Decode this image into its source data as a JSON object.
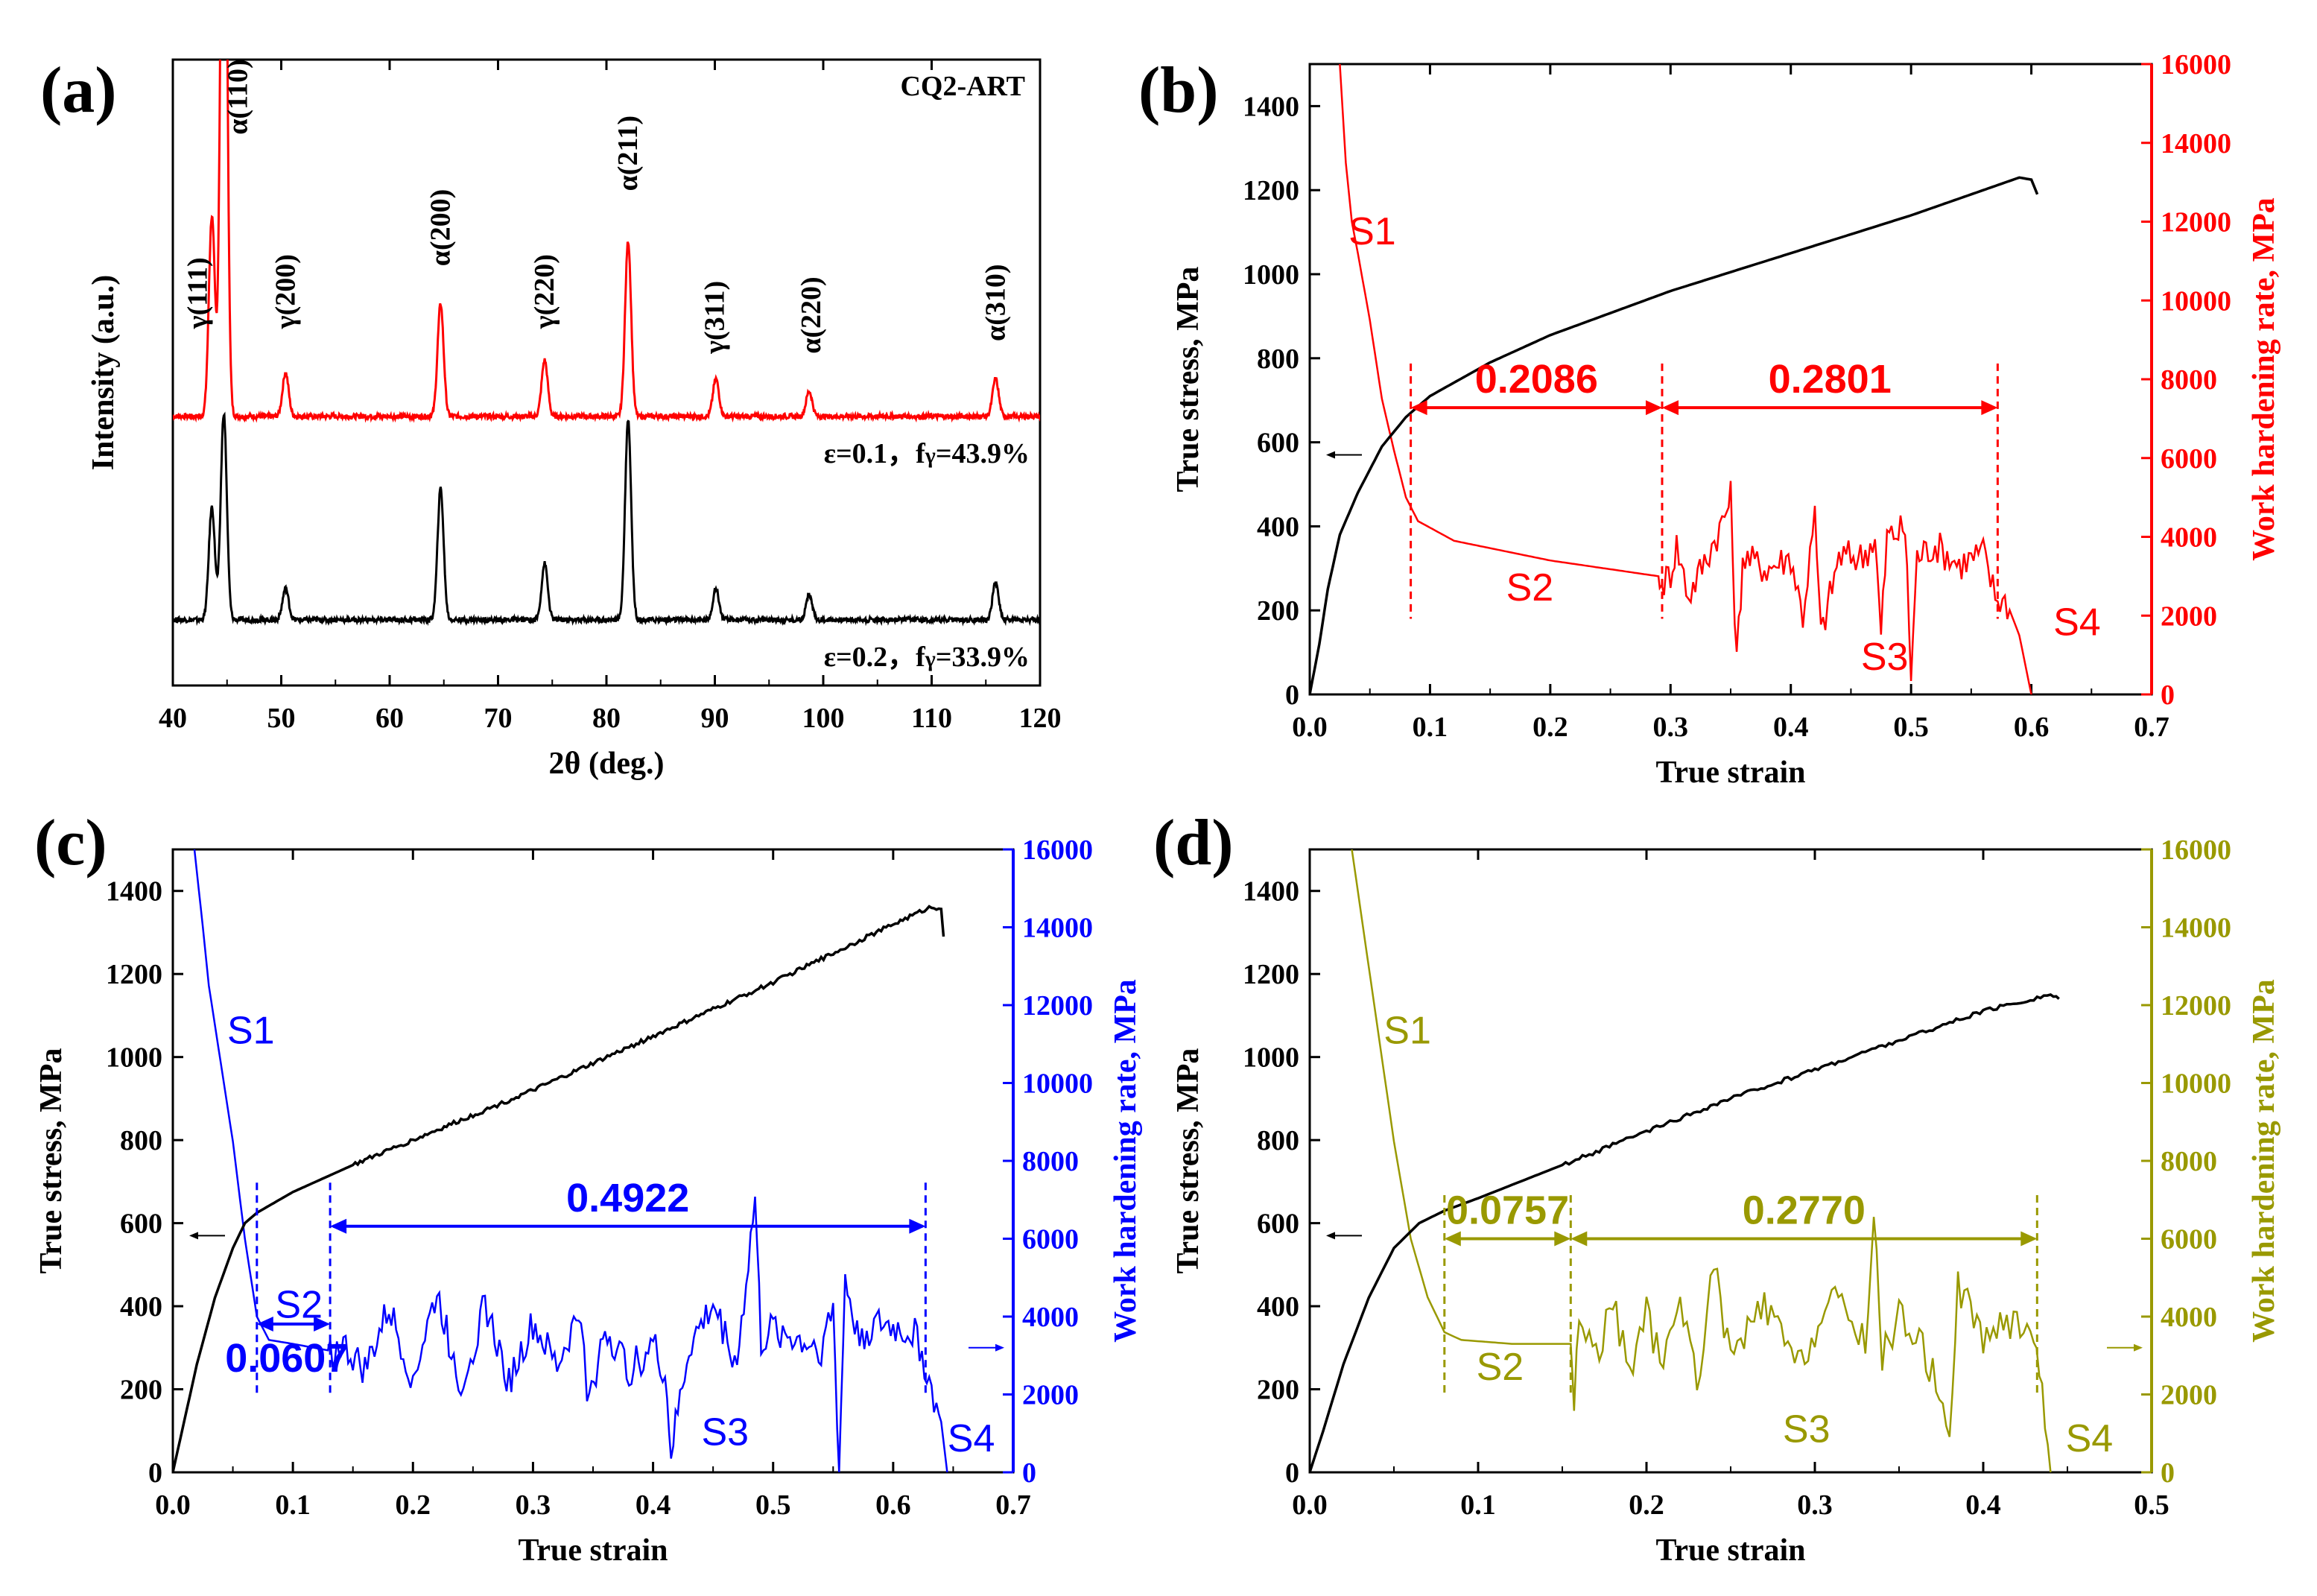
{
  "chart_data": [
    {
      "id": "a",
      "type": "line",
      "panel_label": "(a)",
      "title": "CQ2-ART",
      "xlabel": "2θ (deg.)",
      "ylabel": "Intensity (a.u.)",
      "xlim": [
        40,
        120
      ],
      "xticks": [
        40,
        50,
        60,
        70,
        80,
        90,
        100,
        110,
        120
      ],
      "ylim": [
        0,
        1
      ],
      "series": [
        {
          "name": "ε=0.1",
          "color": "#ff0000",
          "label_parts": [
            "ε=0.1，",
            "f",
            "γ",
            "=43.9%"
          ],
          "baseline": 0.43,
          "peaks": [
            [
              43.6,
              0.32
            ],
            [
              44.7,
              1.2
            ],
            [
              50.4,
              0.07
            ],
            [
              64.7,
              0.18
            ],
            [
              74.3,
              0.09
            ],
            [
              82.0,
              0.28
            ],
            [
              90.1,
              0.06
            ],
            [
              98.7,
              0.04
            ],
            [
              115.9,
              0.06
            ]
          ]
        },
        {
          "name": "ε=0.2",
          "color": "#000000",
          "label_parts": [
            "ε=0.2，",
            "f",
            "γ",
            "=33.9%"
          ],
          "baseline": 0.105,
          "peaks": [
            [
              43.6,
              0.18
            ],
            [
              44.7,
              0.33
            ],
            [
              50.4,
              0.05
            ],
            [
              64.7,
              0.21
            ],
            [
              74.3,
              0.09
            ],
            [
              82.0,
              0.32
            ],
            [
              90.1,
              0.05
            ],
            [
              98.7,
              0.04
            ],
            [
              115.9,
              0.06
            ]
          ]
        }
      ],
      "peak_labels": [
        {
          "text": "γ(111)",
          "x": 42.3,
          "y": 0.57
        },
        {
          "text": "α(110)",
          "x": 46.0,
          "y": 0.88
        },
        {
          "text": "γ(200)",
          "x": 50.4,
          "y": 0.57
        },
        {
          "text": "α(200)",
          "x": 64.7,
          "y": 0.67
        },
        {
          "text": "γ(220)",
          "x": 74.3,
          "y": 0.57
        },
        {
          "text": "α(211)",
          "x": 82.0,
          "y": 0.79
        },
        {
          "text": "γ(311)",
          "x": 90.0,
          "y": 0.53
        },
        {
          "text": "α(220)",
          "x": 98.9,
          "y": 0.53
        },
        {
          "text": "α(310)",
          "x": 115.9,
          "y": 0.55
        }
      ]
    },
    {
      "id": "b",
      "type": "line",
      "panel_label": "(b)",
      "xlabel": "True strain",
      "ylabel": "True stress, MPa",
      "y2label": "Work hardening rate, MPa",
      "accent": "#ff0000",
      "xlim": [
        0,
        0.7
      ],
      "xticks": [
        0.0,
        0.1,
        0.2,
        0.3,
        0.4,
        0.5,
        0.6,
        0.7
      ],
      "ylim": [
        0,
        1500
      ],
      "yticks": [
        0,
        200,
        400,
        600,
        800,
        1000,
        1200,
        1400
      ],
      "y2lim": [
        0,
        16000
      ],
      "y2ticks": [
        0,
        2000,
        4000,
        6000,
        8000,
        10000,
        12000,
        14000,
        16000
      ],
      "stress": [
        [
          0,
          0
        ],
        [
          0.008,
          120
        ],
        [
          0.015,
          250
        ],
        [
          0.025,
          380
        ],
        [
          0.04,
          480
        ],
        [
          0.06,
          590
        ],
        [
          0.08,
          660
        ],
        [
          0.1,
          710
        ],
        [
          0.15,
          790
        ],
        [
          0.2,
          855
        ],
        [
          0.3,
          960
        ],
        [
          0.4,
          1050
        ],
        [
          0.5,
          1140
        ],
        [
          0.57,
          1210
        ],
        [
          0.59,
          1230
        ],
        [
          0.6,
          1225
        ],
        [
          0.605,
          1190
        ]
      ],
      "hardening": [
        [
          0.025,
          16000
        ],
        [
          0.03,
          13500
        ],
        [
          0.035,
          12000
        ],
        [
          0.04,
          11200
        ],
        [
          0.05,
          9500
        ],
        [
          0.06,
          7500
        ],
        [
          0.07,
          6200
        ],
        [
          0.08,
          5000
        ],
        [
          0.09,
          4400
        ],
        [
          0.12,
          3900
        ],
        [
          0.2,
          3400
        ],
        [
          0.29,
          3000
        ],
        [
          0.291,
          2700
        ],
        [
          0.3,
          3100
        ],
        [
          0.305,
          3800
        ],
        [
          0.315,
          2500
        ],
        [
          0.33,
          3500
        ],
        [
          0.345,
          4500
        ],
        [
          0.35,
          5000
        ],
        [
          0.355,
          800
        ],
        [
          0.36,
          3500
        ],
        [
          0.38,
          3200
        ],
        [
          0.4,
          3500
        ],
        [
          0.41,
          2000
        ],
        [
          0.42,
          4500
        ],
        [
          0.425,
          1500
        ],
        [
          0.44,
          3500
        ],
        [
          0.46,
          3500
        ],
        [
          0.47,
          4000
        ],
        [
          0.475,
          1500
        ],
        [
          0.48,
          4000
        ],
        [
          0.495,
          4200
        ],
        [
          0.5,
          500
        ],
        [
          0.505,
          3500
        ],
        [
          0.52,
          3800
        ],
        [
          0.54,
          3300
        ],
        [
          0.56,
          3600
        ],
        [
          0.57,
          2500
        ],
        [
          0.58,
          2300
        ],
        [
          0.59,
          1500
        ],
        [
          0.6,
          0
        ]
      ],
      "vlines": [
        0.084,
        0.293,
        0.572
      ],
      "arrows": [
        {
          "text": "0.2086",
          "x1": 0.084,
          "x2": 0.293,
          "y": 0.455
        },
        {
          "text": "0.2801",
          "x1": 0.293,
          "x2": 0.572,
          "y": 0.455
        }
      ],
      "stage_labels": [
        {
          "text": "S1",
          "x": 0.052,
          "y": 0.735
        },
        {
          "text": "S2",
          "x": 0.183,
          "y": 0.17
        },
        {
          "text": "S3",
          "x": 0.478,
          "y": 0.06
        },
        {
          "text": "S4",
          "x": 0.638,
          "y": 0.115
        }
      ]
    },
    {
      "id": "c",
      "type": "line",
      "panel_label": "(c)",
      "xlabel": "True strain",
      "ylabel": "True stress, MPa",
      "y2label": "Work hardening rate, MPa",
      "accent": "#0000ff",
      "xlim": [
        0,
        0.7
      ],
      "xticks": [
        0.0,
        0.1,
        0.2,
        0.3,
        0.4,
        0.5,
        0.6,
        0.7
      ],
      "ylim": [
        0,
        1500
      ],
      "yticks": [
        0,
        200,
        400,
        600,
        800,
        1000,
        1200,
        1400
      ],
      "y2lim": [
        0,
        16000
      ],
      "y2ticks": [
        0,
        2000,
        4000,
        6000,
        8000,
        10000,
        12000,
        14000,
        16000
      ],
      "stress": [
        [
          0,
          0
        ],
        [
          0.01,
          130
        ],
        [
          0.02,
          260
        ],
        [
          0.035,
          420
        ],
        [
          0.05,
          540
        ],
        [
          0.06,
          600
        ],
        [
          0.07,
          625
        ],
        [
          0.1,
          675
        ],
        [
          0.15,
          740
        ],
        [
          0.2,
          800
        ],
        [
          0.3,
          920
        ],
        [
          0.4,
          1050
        ],
        [
          0.5,
          1180
        ],
        [
          0.6,
          1320
        ],
        [
          0.63,
          1360
        ],
        [
          0.64,
          1360
        ],
        [
          0.642,
          1290
        ]
      ],
      "hardening": [
        [
          0.018,
          16000
        ],
        [
          0.025,
          14000
        ],
        [
          0.03,
          12500
        ],
        [
          0.04,
          10500
        ],
        [
          0.05,
          8500
        ],
        [
          0.06,
          6000
        ],
        [
          0.07,
          4000
        ],
        [
          0.08,
          3400
        ],
        [
          0.1,
          3300
        ],
        [
          0.135,
          3100
        ],
        [
          0.14,
          3300
        ],
        [
          0.16,
          2600
        ],
        [
          0.18,
          4200
        ],
        [
          0.2,
          2400
        ],
        [
          0.22,
          4600
        ],
        [
          0.24,
          2200
        ],
        [
          0.26,
          4300
        ],
        [
          0.28,
          2300
        ],
        [
          0.3,
          3800
        ],
        [
          0.32,
          2700
        ],
        [
          0.34,
          4200
        ],
        [
          0.345,
          1600
        ],
        [
          0.36,
          3700
        ],
        [
          0.38,
          2600
        ],
        [
          0.4,
          3300
        ],
        [
          0.41,
          2500
        ],
        [
          0.415,
          500
        ],
        [
          0.43,
          3200
        ],
        [
          0.45,
          4300
        ],
        [
          0.47,
          2800
        ],
        [
          0.485,
          7000
        ],
        [
          0.49,
          3300
        ],
        [
          0.5,
          3700
        ],
        [
          0.52,
          3400
        ],
        [
          0.54,
          3200
        ],
        [
          0.55,
          4200
        ],
        [
          0.555,
          0
        ],
        [
          0.56,
          5000
        ],
        [
          0.57,
          3500
        ],
        [
          0.59,
          3800
        ],
        [
          0.61,
          3600
        ],
        [
          0.62,
          3500
        ],
        [
          0.63,
          2300
        ],
        [
          0.64,
          1300
        ],
        [
          0.645,
          0
        ]
      ],
      "vlines": [
        0.07,
        0.131,
        0.627
      ],
      "arrows": [
        {
          "text": "0.0607",
          "x1": 0.07,
          "x2": 0.131,
          "y": 0.238,
          "label_pos": "below-left"
        },
        {
          "text": "0.4922",
          "x1": 0.131,
          "x2": 0.627,
          "y": 0.395
        }
      ],
      "stage_labels": [
        {
          "text": "S1",
          "x": 0.065,
          "y": 0.71
        },
        {
          "text": "S2",
          "x": 0.105,
          "y": 0.27
        },
        {
          "text": "S3",
          "x": 0.46,
          "y": 0.065
        },
        {
          "text": "S4",
          "x": 0.665,
          "y": 0.055
        }
      ]
    },
    {
      "id": "d",
      "type": "line",
      "panel_label": "(d)",
      "xlabel": "True strain",
      "ylabel": "True stress, MPa",
      "y2label": "Work hardening rate, MPa",
      "accent": "#999900",
      "xlim": [
        0,
        0.5
      ],
      "xticks": [
        0.0,
        0.1,
        0.2,
        0.3,
        0.4,
        0.5
      ],
      "ylim": [
        0,
        1500
      ],
      "yticks": [
        0,
        200,
        400,
        600,
        800,
        1000,
        1200,
        1400
      ],
      "y2lim": [
        0,
        16000
      ],
      "y2ticks": [
        0,
        2000,
        4000,
        6000,
        8000,
        10000,
        12000,
        14000,
        16000
      ],
      "stress": [
        [
          0,
          0
        ],
        [
          0.008,
          100
        ],
        [
          0.02,
          260
        ],
        [
          0.035,
          420
        ],
        [
          0.05,
          540
        ],
        [
          0.065,
          600
        ],
        [
          0.08,
          630
        ],
        [
          0.1,
          660
        ],
        [
          0.15,
          740
        ],
        [
          0.2,
          820
        ],
        [
          0.25,
          900
        ],
        [
          0.3,
          970
        ],
        [
          0.35,
          1040
        ],
        [
          0.4,
          1110
        ],
        [
          0.44,
          1150
        ],
        [
          0.445,
          1140
        ]
      ],
      "hardening": [
        [
          0.025,
          16000
        ],
        [
          0.03,
          14500
        ],
        [
          0.04,
          11500
        ],
        [
          0.05,
          8500
        ],
        [
          0.06,
          6000
        ],
        [
          0.07,
          4500
        ],
        [
          0.08,
          3600
        ],
        [
          0.09,
          3400
        ],
        [
          0.12,
          3300
        ],
        [
          0.155,
          3300
        ],
        [
          0.157,
          1800
        ],
        [
          0.16,
          4000
        ],
        [
          0.17,
          3000
        ],
        [
          0.18,
          4300
        ],
        [
          0.19,
          2600
        ],
        [
          0.2,
          4100
        ],
        [
          0.21,
          2600
        ],
        [
          0.22,
          4600
        ],
        [
          0.23,
          2300
        ],
        [
          0.24,
          5300
        ],
        [
          0.25,
          2900
        ],
        [
          0.27,
          4300
        ],
        [
          0.29,
          2700
        ],
        [
          0.31,
          4500
        ],
        [
          0.33,
          3400
        ],
        [
          0.335,
          6500
        ],
        [
          0.34,
          3000
        ],
        [
          0.35,
          4000
        ],
        [
          0.36,
          3600
        ],
        [
          0.37,
          2500
        ],
        [
          0.38,
          1200
        ],
        [
          0.385,
          4800
        ],
        [
          0.4,
          3500
        ],
        [
          0.42,
          3900
        ],
        [
          0.43,
          3700
        ],
        [
          0.435,
          2000
        ],
        [
          0.44,
          0
        ]
      ],
      "vlines": [
        0.08,
        0.155,
        0.432
      ],
      "arrows": [
        {
          "text": "0.0757",
          "x1": 0.08,
          "x2": 0.155,
          "y": 0.375
        },
        {
          "text": "0.2770",
          "x1": 0.155,
          "x2": 0.432,
          "y": 0.375
        }
      ],
      "stage_labels": [
        {
          "text": "S1",
          "x": 0.058,
          "y": 0.71
        },
        {
          "text": "S2",
          "x": 0.113,
          "y": 0.17
        },
        {
          "text": "S3",
          "x": 0.295,
          "y": 0.07
        },
        {
          "text": "S4",
          "x": 0.463,
          "y": 0.055
        }
      ]
    }
  ]
}
